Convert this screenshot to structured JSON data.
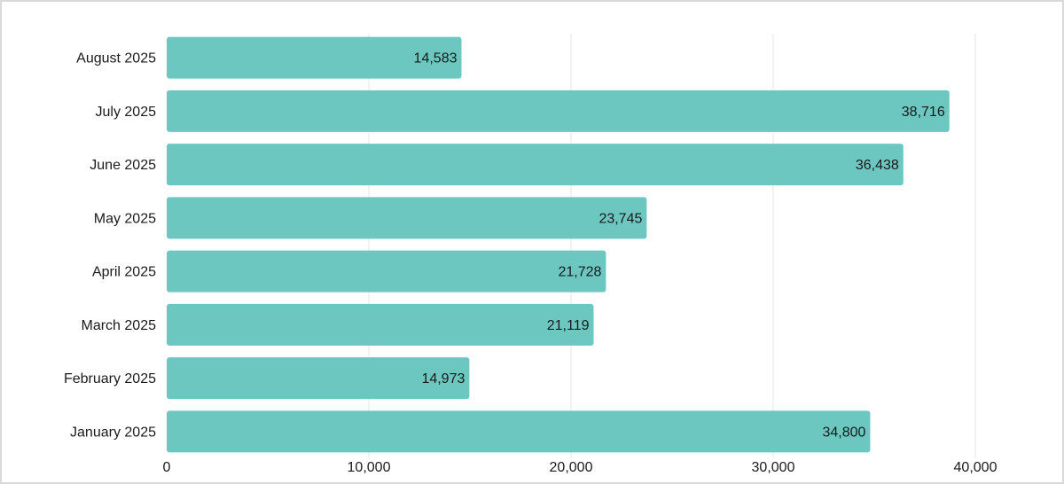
{
  "chart_data": {
    "type": "bar",
    "orientation": "horizontal",
    "title": "",
    "xlabel": "",
    "ylabel": "",
    "categories": [
      "August 2025",
      "July 2025",
      "June 2025",
      "May 2025",
      "April 2025",
      "March 2025",
      "February 2025",
      "January 2025"
    ],
    "values": [
      14583,
      38716,
      36438,
      23745,
      21728,
      21119,
      14973,
      34800
    ],
    "value_labels": [
      "14,583",
      "38,716",
      "36,438",
      "23,745",
      "21,728",
      "21,119",
      "14,973",
      "34,800"
    ],
    "xlim": [
      0,
      40000
    ],
    "ticks": [
      0,
      10000,
      20000,
      30000,
      40000
    ],
    "tick_labels": [
      "0",
      "10,000",
      "20,000",
      "30,000",
      "40,000"
    ],
    "grid": true,
    "bar_color": "#6cc7c1",
    "legend": "none"
  }
}
